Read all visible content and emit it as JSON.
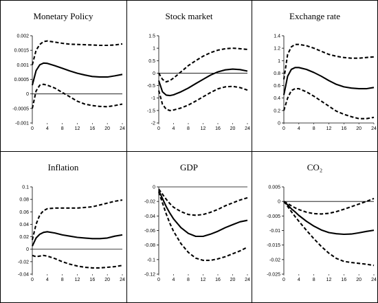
{
  "charts": [
    {
      "type": "line",
      "title": "Monetary Policy",
      "x": [
        0,
        1,
        2,
        3,
        4,
        6,
        8,
        10,
        12,
        14,
        16,
        18,
        20,
        22,
        24
      ],
      "xticks": [
        0,
        4,
        8,
        12,
        16,
        20,
        24
      ],
      "xtick_labels": [
        "0",
        "4",
        "8",
        "12",
        "16",
        "20",
        "24"
      ],
      "yticks": [
        -0.001,
        -0.0005,
        0,
        0.0005,
        0.001,
        0.0015,
        0.002
      ],
      "ytick_labels": [
        "-0.001",
        "-0.0005",
        "0",
        "0.0005",
        "0.001",
        "0.0015",
        "0.002"
      ],
      "ylim": [
        -0.001,
        0.002
      ],
      "series": [
        {
          "style": "dashed",
          "values": [
            0.001,
            0.0015,
            0.0017,
            0.0018,
            0.00182,
            0.00178,
            0.00174,
            0.00171,
            0.0017,
            0.00169,
            0.00168,
            0.00167,
            0.00167,
            0.00168,
            0.00172
          ]
        },
        {
          "style": "solid",
          "values": [
            0.0003,
            0.0008,
            0.001,
            0.00106,
            0.00105,
            0.00097,
            0.00088,
            0.00079,
            0.00071,
            0.00065,
            0.0006,
            0.00058,
            0.00058,
            0.00062,
            0.00067
          ]
        },
        {
          "style": "dashed",
          "values": [
            -0.0005,
            0.0001,
            0.0003,
            0.00033,
            0.0003,
            0.0002,
            5e-05,
            -0.0001,
            -0.00025,
            -0.00035,
            -0.0004,
            -0.00043,
            -0.00044,
            -0.0004,
            -0.00035
          ]
        }
      ]
    },
    {
      "type": "line",
      "title": "Stock market",
      "x": [
        0,
        1,
        2,
        3,
        4,
        6,
        8,
        10,
        12,
        14,
        16,
        18,
        20,
        22,
        24
      ],
      "xticks": [
        0,
        4,
        8,
        12,
        16,
        20,
        24
      ],
      "xtick_labels": [
        "0",
        "4",
        "8",
        "12",
        "16",
        "20",
        "24"
      ],
      "yticks": [
        -2,
        -1.5,
        -1,
        -0.5,
        0,
        0.5,
        1,
        1.5
      ],
      "ytick_labels": [
        "-2",
        "-1.5",
        "-1",
        "-0.5",
        "0",
        "0.5",
        "1",
        "1.5"
      ],
      "ylim": [
        -2,
        1.5
      ],
      "series": [
        {
          "style": "dashed",
          "values": [
            0,
            -0.25,
            -0.35,
            -0.3,
            -0.2,
            0.05,
            0.3,
            0.5,
            0.68,
            0.82,
            0.92,
            0.98,
            1.0,
            0.98,
            0.95
          ]
        },
        {
          "style": "solid",
          "values": [
            -0.3,
            -0.75,
            -0.88,
            -0.9,
            -0.87,
            -0.75,
            -0.6,
            -0.42,
            -0.25,
            -0.08,
            0.05,
            0.13,
            0.16,
            0.14,
            0.08
          ]
        },
        {
          "style": "dashed",
          "values": [
            -0.7,
            -1.25,
            -1.45,
            -1.5,
            -1.48,
            -1.4,
            -1.28,
            -1.12,
            -0.95,
            -0.78,
            -0.63,
            -0.55,
            -0.53,
            -0.58,
            -0.68
          ]
        }
      ]
    },
    {
      "type": "line",
      "title": "Exchange rate",
      "x": [
        0,
        1,
        2,
        3,
        4,
        6,
        8,
        10,
        12,
        14,
        16,
        18,
        20,
        22,
        24
      ],
      "xticks": [
        0,
        4,
        8,
        12,
        16,
        20,
        24
      ],
      "xtick_labels": [
        "0",
        "4",
        "8",
        "12",
        "16",
        "20",
        "24"
      ],
      "yticks": [
        0,
        0.2,
        0.4,
        0.6,
        0.8,
        1,
        1.2,
        1.4
      ],
      "ytick_labels": [
        "0",
        "0.2",
        "0.4",
        "0.6",
        "0.8",
        "1",
        "1.2",
        "1.4"
      ],
      "ylim": [
        0,
        1.4
      ],
      "series": [
        {
          "style": "dashed",
          "values": [
            0.7,
            1.1,
            1.22,
            1.26,
            1.26,
            1.24,
            1.2,
            1.15,
            1.1,
            1.07,
            1.05,
            1.04,
            1.04,
            1.05,
            1.06
          ]
        },
        {
          "style": "solid",
          "values": [
            0.45,
            0.75,
            0.86,
            0.89,
            0.89,
            0.86,
            0.81,
            0.75,
            0.68,
            0.62,
            0.58,
            0.56,
            0.55,
            0.55,
            0.57
          ]
        },
        {
          "style": "dashed",
          "values": [
            0.2,
            0.4,
            0.52,
            0.55,
            0.55,
            0.5,
            0.43,
            0.35,
            0.27,
            0.19,
            0.14,
            0.1,
            0.07,
            0.07,
            0.09
          ]
        }
      ]
    },
    {
      "type": "line",
      "title": "Inflation",
      "x": [
        0,
        1,
        2,
        3,
        4,
        6,
        8,
        10,
        12,
        14,
        16,
        18,
        20,
        22,
        24
      ],
      "xticks": [
        0,
        4,
        8,
        12,
        16,
        20,
        24
      ],
      "xtick_labels": [
        "0",
        "4",
        "8",
        "12",
        "16",
        "20",
        "24"
      ],
      "yticks": [
        -0.04,
        -0.02,
        0,
        0.02,
        0.04,
        0.06,
        0.08,
        0.1
      ],
      "ytick_labels": [
        "-0.04",
        "-0.02",
        "0",
        "0.02",
        "0.04",
        "0.06",
        "0.08",
        "0.1"
      ],
      "ylim": [
        -0.04,
        0.1
      ],
      "series": [
        {
          "style": "dashed",
          "values": [
            0.015,
            0.04,
            0.055,
            0.062,
            0.065,
            0.066,
            0.066,
            0.066,
            0.066,
            0.067,
            0.068,
            0.071,
            0.074,
            0.077,
            0.079
          ]
        },
        {
          "style": "solid",
          "values": [
            0.005,
            0.018,
            0.024,
            0.027,
            0.028,
            0.026,
            0.023,
            0.021,
            0.019,
            0.018,
            0.017,
            0.017,
            0.018,
            0.021,
            0.023
          ]
        },
        {
          "style": "dashed",
          "values": [
            -0.01,
            -0.012,
            -0.011,
            -0.01,
            -0.011,
            -0.015,
            -0.02,
            -0.024,
            -0.027,
            -0.029,
            -0.03,
            -0.03,
            -0.029,
            -0.028,
            -0.026
          ]
        }
      ]
    },
    {
      "type": "line",
      "title": "GDP",
      "x": [
        0,
        1,
        2,
        3,
        4,
        6,
        8,
        10,
        12,
        14,
        16,
        18,
        20,
        22,
        24
      ],
      "xticks": [
        0,
        4,
        8,
        12,
        16,
        20,
        24
      ],
      "xtick_labels": [
        "0",
        "4",
        "8",
        "12",
        "16",
        "20",
        "24"
      ],
      "yticks": [
        -0.12,
        -0.1,
        -0.08,
        -0.06,
        -0.04,
        -0.02,
        0
      ],
      "ytick_labels": [
        "-0.12",
        "-0.1",
        "-0.08",
        "-0.06",
        "-0.04",
        "-0.02",
        "0"
      ],
      "ylim": [
        -0.12,
        0
      ],
      "series": [
        {
          "style": "dashed",
          "values": [
            -0.003,
            -0.01,
            -0.017,
            -0.023,
            -0.028,
            -0.034,
            -0.038,
            -0.039,
            -0.038,
            -0.035,
            -0.031,
            -0.026,
            -0.022,
            -0.018,
            -0.015
          ]
        },
        {
          "style": "solid",
          "values": [
            -0.005,
            -0.016,
            -0.027,
            -0.036,
            -0.044,
            -0.056,
            -0.064,
            -0.068,
            -0.068,
            -0.065,
            -0.061,
            -0.056,
            -0.052,
            -0.048,
            -0.046
          ]
        },
        {
          "style": "dashed",
          "values": [
            -0.007,
            -0.022,
            -0.037,
            -0.05,
            -0.061,
            -0.078,
            -0.09,
            -0.098,
            -0.101,
            -0.101,
            -0.099,
            -0.096,
            -0.092,
            -0.088,
            -0.083
          ]
        }
      ]
    },
    {
      "type": "line",
      "title": "CO₂",
      "x": [
        0,
        1,
        2,
        3,
        4,
        6,
        8,
        10,
        12,
        14,
        16,
        18,
        20,
        22,
        24
      ],
      "xticks": [
        0,
        4,
        8,
        12,
        16,
        20,
        24
      ],
      "xtick_labels": [
        "0",
        "4",
        "8",
        "12",
        "16",
        "20",
        "24"
      ],
      "yticks": [
        -0.025,
        -0.02,
        -0.015,
        -0.01,
        -0.005,
        0,
        0.005
      ],
      "ytick_labels": [
        "-0.025",
        "-0.02",
        "-0.015",
        "-0.01",
        "-0.005",
        "0",
        "0.005"
      ],
      "ylim": [
        -0.025,
        0.005
      ],
      "series": [
        {
          "style": "dashed",
          "values": [
            0,
            -0.0007,
            -0.0015,
            -0.0022,
            -0.0028,
            -0.0037,
            -0.0042,
            -0.0043,
            -0.0041,
            -0.0035,
            -0.0027,
            -0.0018,
            -0.0009,
            0,
            0.001
          ]
        },
        {
          "style": "solid",
          "values": [
            0,
            -0.0012,
            -0.0025,
            -0.0036,
            -0.0048,
            -0.0068,
            -0.0085,
            -0.0098,
            -0.0107,
            -0.0111,
            -0.0113,
            -0.0112,
            -0.0108,
            -0.0103,
            -0.0099
          ]
        },
        {
          "style": "dashed",
          "values": [
            0,
            -0.0017,
            -0.0035,
            -0.0052,
            -0.0068,
            -0.0099,
            -0.0128,
            -0.0155,
            -0.0178,
            -0.0196,
            -0.0206,
            -0.021,
            -0.0213,
            -0.0216,
            -0.022
          ]
        }
      ]
    }
  ]
}
